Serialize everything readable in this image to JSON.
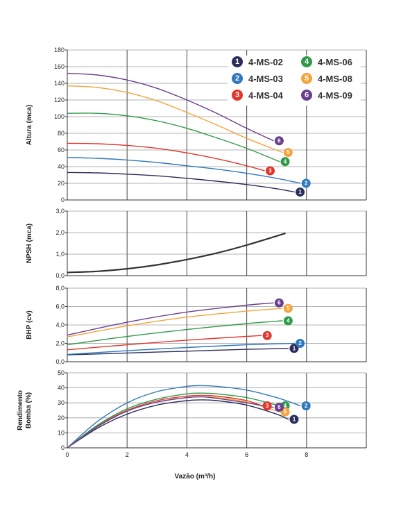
{
  "chart_data": [
    {
      "id": "altura",
      "type": "line",
      "ylabel": "Altura (mca)",
      "ylim": [
        0,
        180
      ],
      "yticks": [
        "0",
        "20",
        "40",
        "60",
        "80",
        "100",
        "120",
        "140",
        "160",
        "180"
      ],
      "ytick_values": [
        0,
        20,
        40,
        60,
        80,
        100,
        120,
        140,
        160,
        180
      ],
      "xlim": [
        0,
        10
      ],
      "grid": true,
      "legend": "top-right",
      "series": [
        {
          "name": "4-MS-02",
          "badge": "1",
          "color": "#2b2d5a",
          "x": [
            0,
            1,
            2,
            3,
            4,
            5,
            6,
            7,
            7.6
          ],
          "y": [
            33,
            32.5,
            31,
            29,
            26,
            22.5,
            18.5,
            13.5,
            9.5
          ]
        },
        {
          "name": "4-MS-03",
          "badge": "2",
          "color": "#2e78bd",
          "x": [
            0,
            1,
            2,
            3,
            4,
            5,
            6,
            7,
            7.8
          ],
          "y": [
            51,
            50,
            48,
            45,
            41,
            37,
            32,
            26,
            20
          ]
        },
        {
          "name": "4-MS-04",
          "badge": "3",
          "color": "#e0362b",
          "x": [
            0,
            1,
            2,
            3,
            4,
            5,
            6,
            6.6
          ],
          "y": [
            68,
            67.5,
            65.5,
            62,
            56.5,
            49.5,
            41,
            35
          ]
        },
        {
          "name": "4-MS-06",
          "badge": "4",
          "color": "#2f9a48",
          "x": [
            0,
            1,
            2,
            3,
            4,
            5,
            6,
            7.1
          ],
          "y": [
            104,
            104,
            101,
            95,
            86,
            74.5,
            62,
            46
          ]
        },
        {
          "name": "4-MS-08",
          "badge": "5",
          "color": "#f5a33a",
          "x": [
            0,
            1,
            2,
            3,
            4,
            5,
            6,
            7.2
          ],
          "y": [
            137,
            135,
            129,
            119,
            105,
            90,
            74,
            57
          ]
        },
        {
          "name": "4-MS-09",
          "badge": "6",
          "color": "#6a3e8f",
          "x": [
            0,
            1,
            2,
            3,
            4,
            5,
            6,
            6.9
          ],
          "y": [
            152,
            150,
            144,
            134,
            120,
            104,
            86,
            71
          ]
        }
      ]
    },
    {
      "id": "npsh",
      "type": "line",
      "ylabel": "NPSH (mca)",
      "ylim": [
        0,
        3
      ],
      "yticks": [
        "0,0",
        "1,0",
        "2,0",
        "3,0"
      ],
      "ytick_values": [
        0,
        1,
        2,
        3
      ],
      "xlim": [
        0,
        10
      ],
      "grid": true,
      "series": [
        {
          "name": "",
          "color": "#333333",
          "x": [
            0,
            1,
            2,
            3,
            4,
            5,
            6,
            7.3
          ],
          "y": [
            0.15,
            0.2,
            0.32,
            0.5,
            0.75,
            1.05,
            1.42,
            1.97
          ]
        }
      ]
    },
    {
      "id": "bhp",
      "type": "line",
      "ylabel": "BHP (cv)",
      "ylim": [
        0,
        8
      ],
      "yticks": [
        "0,0",
        "2,0",
        "4,0",
        "6,0",
        "8,0"
      ],
      "ytick_values": [
        0,
        2,
        4,
        6,
        8
      ],
      "xlim": [
        0,
        10
      ],
      "grid": true,
      "series": [
        {
          "name": "4-MS-02",
          "badge": "1",
          "color": "#2b2d5a",
          "x": [
            0,
            2,
            4,
            6,
            7.4
          ],
          "y": [
            0.75,
            0.95,
            1.15,
            1.35,
            1.45
          ]
        },
        {
          "name": "4-MS-03",
          "badge": "2",
          "color": "#2e78bd",
          "x": [
            0,
            2,
            4,
            6,
            7.6
          ],
          "y": [
            0.8,
            1.2,
            1.55,
            1.85,
            2.0
          ]
        },
        {
          "name": "4-MS-04",
          "badge": "3",
          "color": "#e0362b",
          "x": [
            0,
            2,
            4,
            6.5
          ],
          "y": [
            1.3,
            1.85,
            2.35,
            2.85
          ]
        },
        {
          "name": "4-MS-06",
          "badge": "4",
          "color": "#2f9a48",
          "x": [
            0,
            2,
            4,
            6,
            7.2
          ],
          "y": [
            1.85,
            2.75,
            3.5,
            4.15,
            4.45
          ]
        },
        {
          "name": "4-MS-08",
          "badge": "5",
          "color": "#f5a33a",
          "x": [
            0,
            2,
            4,
            6,
            7.2
          ],
          "y": [
            2.7,
            3.9,
            4.85,
            5.5,
            5.8
          ]
        },
        {
          "name": "4-MS-09",
          "badge": "6",
          "color": "#6a3e8f",
          "x": [
            0,
            2,
            4,
            6,
            6.9
          ],
          "y": [
            2.9,
            4.3,
            5.4,
            6.15,
            6.4
          ]
        }
      ]
    },
    {
      "id": "rendimento",
      "type": "line",
      "ylabel": "Rendimento Bomba (%)",
      "ylabel_lines": [
        "Rendimento",
        "Bomba (%)"
      ],
      "xlabel": "Vazão (m³/h)",
      "ylim": [
        0,
        50
      ],
      "yticks": [
        "0",
        "10",
        "20",
        "30",
        "40",
        "50"
      ],
      "ytick_values": [
        0,
        10,
        20,
        30,
        40,
        50
      ],
      "xlim": [
        0,
        10
      ],
      "xticks": [
        "0",
        "2",
        "4",
        "6",
        "8"
      ],
      "xtick_values": [
        0,
        2,
        4,
        6,
        8
      ],
      "grid": true,
      "series": [
        {
          "name": "4-MS-02",
          "badge": "1",
          "color": "#2b2d5a",
          "x": [
            0,
            1,
            2,
            3,
            4,
            4.5,
            5,
            6,
            7,
            7.4
          ],
          "y": [
            0,
            13,
            22.5,
            28.5,
            31.5,
            32,
            31.5,
            28.5,
            22.5,
            19
          ]
        },
        {
          "name": "4-MS-03",
          "badge": "2",
          "color": "#2e78bd",
          "x": [
            0,
            1,
            2,
            3,
            4,
            4.5,
            5,
            6,
            7,
            7.8
          ],
          "y": [
            0,
            17.5,
            30,
            37.5,
            41,
            41.5,
            41,
            38.5,
            33.5,
            28
          ]
        },
        {
          "name": "4-MS-04",
          "badge": "3",
          "color": "#e0362b",
          "x": [
            0,
            1,
            2,
            3,
            4,
            4.5,
            5,
            6,
            6.5
          ],
          "y": [
            0,
            14.5,
            25,
            31.5,
            34.5,
            35,
            34.5,
            31.5,
            28
          ]
        },
        {
          "name": "4-MS-06",
          "badge": "4",
          "color": "#2f9a48",
          "x": [
            0,
            1,
            2,
            3,
            4,
            4.5,
            5,
            6,
            7.1
          ],
          "y": [
            0,
            15,
            26,
            32.5,
            36,
            36.5,
            36,
            33.5,
            28
          ]
        },
        {
          "name": "4-MS-08",
          "badge": "5",
          "color": "#f5a33a",
          "x": [
            0,
            1,
            2,
            3,
            4,
            4.5,
            5,
            6,
            7.1
          ],
          "y": [
            0,
            14,
            24.5,
            30.5,
            33.5,
            34,
            33.5,
            30.5,
            24
          ]
        },
        {
          "name": "4-MS-09",
          "badge": "6",
          "color": "#6a3e8f",
          "x": [
            0,
            1,
            2,
            3,
            4,
            4.5,
            5,
            6,
            6.9
          ],
          "y": [
            0,
            14,
            24.5,
            30.5,
            33.5,
            34,
            33,
            30,
            27
          ]
        }
      ]
    }
  ]
}
